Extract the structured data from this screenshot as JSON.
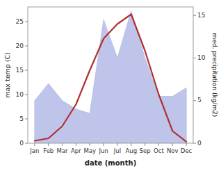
{
  "chart_data": {
    "type": "line",
    "xlabel": "date (month)",
    "ylabel": "max temp (C)",
    "y2label": "med. precipitation (kg/m2)",
    "categories": [
      "Jan",
      "Feb",
      "Mar",
      "Apr",
      "May",
      "Jun",
      "Jul",
      "Aug",
      "Sep",
      "Oct",
      "Nov",
      "Dec"
    ],
    "series": [
      {
        "type": "line",
        "color": "#b03030",
        "values": [
          0.5,
          1.0,
          3.5,
          8.0,
          15.0,
          21.5,
          24.5,
          26.5,
          19.0,
          10.0,
          2.5,
          0.3
        ]
      },
      {
        "type": "area",
        "color": "#b8bfe8",
        "axis": "y2",
        "values": [
          5.0,
          7.0,
          5.0,
          4.0,
          3.5,
          14.5,
          10.0,
          15.5,
          10.0,
          5.5,
          5.5,
          6.5
        ]
      }
    ],
    "ylim": [
      0,
      28
    ],
    "yticks": [
      0,
      5,
      10,
      15,
      20,
      25
    ],
    "y2lim": [
      0,
      16
    ],
    "y2ticks": [
      0,
      5,
      10,
      15
    ],
    "grid": false
  }
}
